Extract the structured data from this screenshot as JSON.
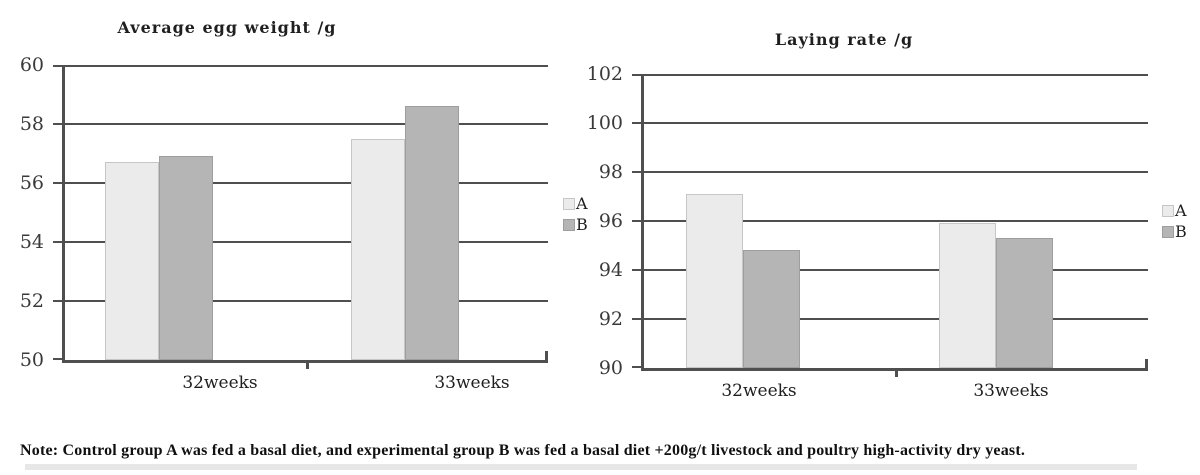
{
  "note": "Note: Control group A was fed a basal diet, and experimental group B was fed a basal diet +200g/t livestock and poultry high-activity dry yeast.",
  "colors": {
    "series_a_fill": "#ebebeb",
    "series_a_border": "#c6c6c6",
    "series_b_fill": "#b5b5b5",
    "series_b_border": "#9e9e9e",
    "gridline": "#4f4f4f",
    "tick_label_text": "#3a3a3a",
    "title_text": "#1f1f1f"
  },
  "chart_data": [
    {
      "type": "bar",
      "title": "Average egg weight /g",
      "categories": [
        "32weeks",
        "33weeks"
      ],
      "series": [
        {
          "name": "A",
          "values": [
            56.7,
            57.5
          ]
        },
        {
          "name": "B",
          "values": [
            56.9,
            58.6
          ]
        }
      ],
      "xlabel": "",
      "ylabel": "",
      "ylim": [
        50,
        60
      ],
      "yticks": [
        50,
        52,
        54,
        56,
        58,
        60
      ],
      "grid": true,
      "legend_position": "right",
      "legend_entries": [
        "A",
        "B"
      ]
    },
    {
      "type": "bar",
      "title": "Laying rate /g",
      "categories": [
        "32weeks",
        "33weeks"
      ],
      "series": [
        {
          "name": "A",
          "values": [
            97.1,
            95.9
          ]
        },
        {
          "name": "B",
          "values": [
            94.8,
            95.3
          ]
        }
      ],
      "xlabel": "",
      "ylabel": "",
      "ylim": [
        90,
        102
      ],
      "yticks": [
        90,
        92,
        94,
        96,
        98,
        100,
        102
      ],
      "grid": true,
      "legend_position": "right",
      "legend_entries": [
        "A",
        "B"
      ]
    }
  ]
}
